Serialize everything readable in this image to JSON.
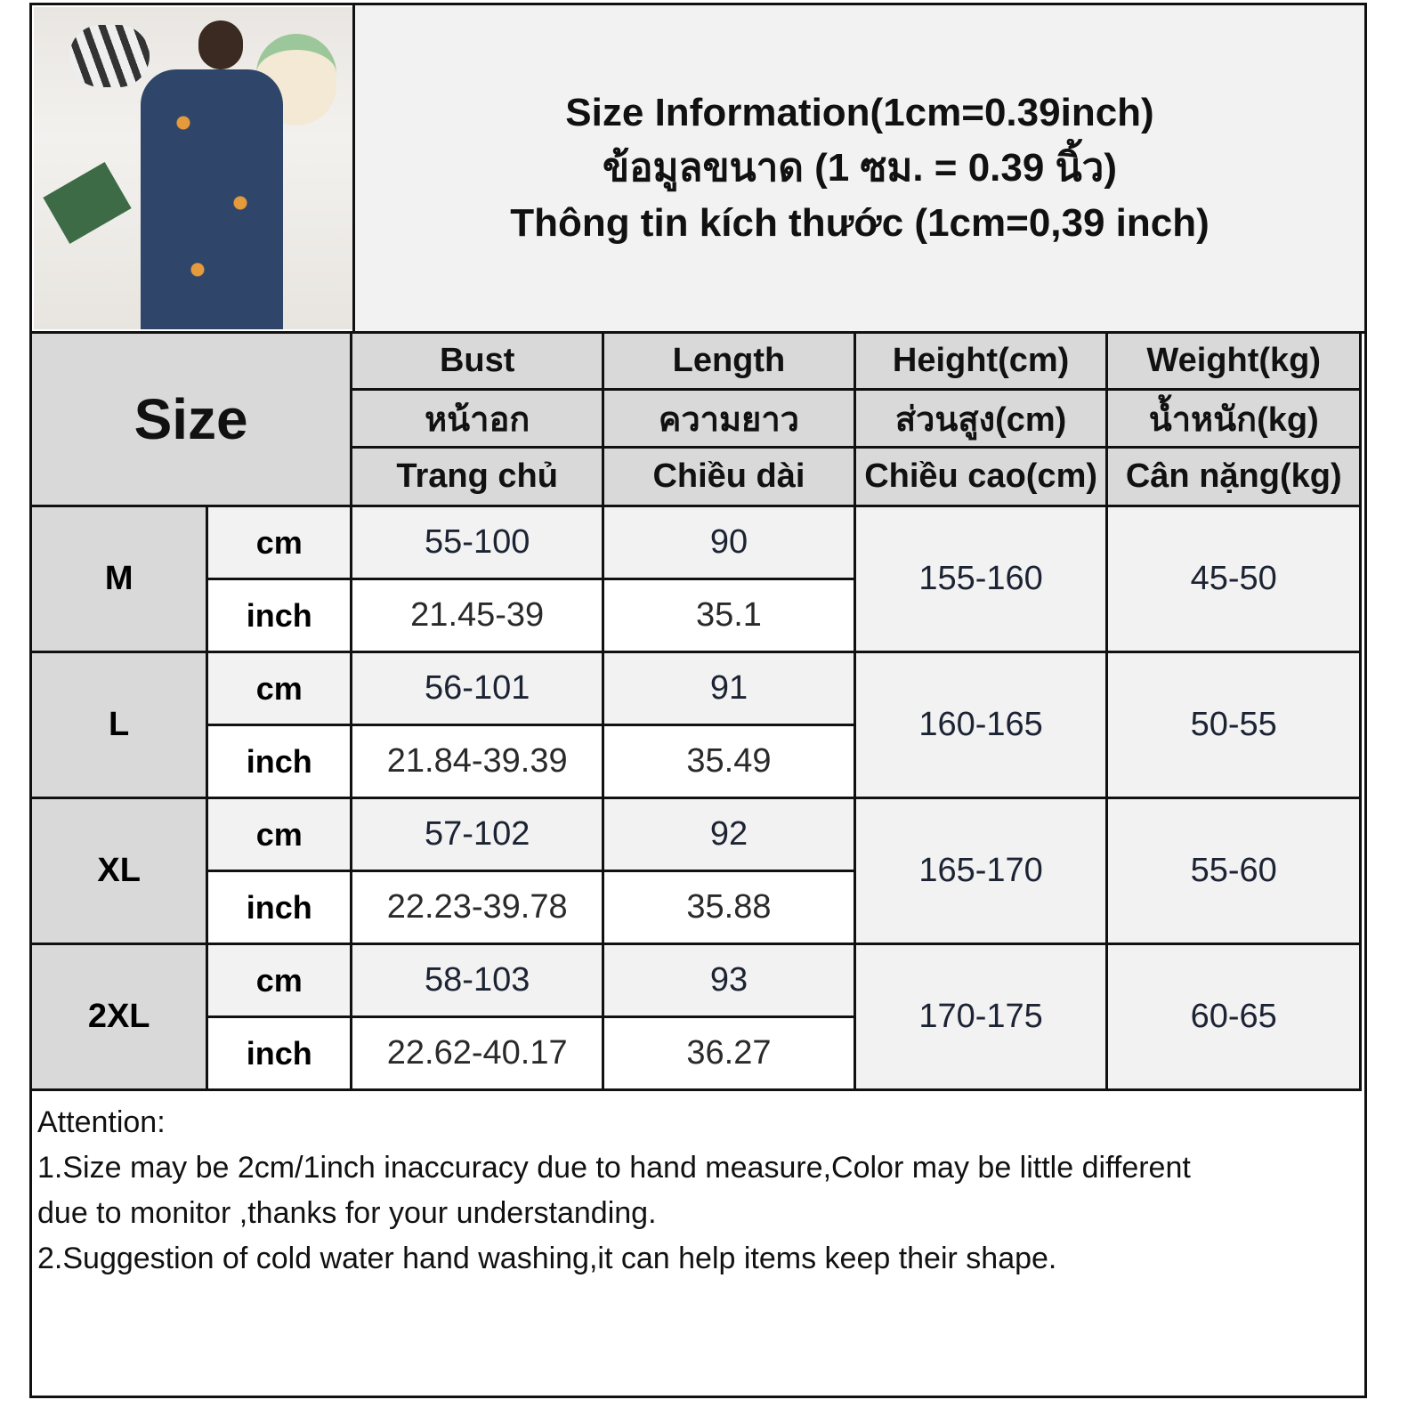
{
  "title_lines": [
    "Size Information(1cm=0.39inch)",
    "ข้อมูลขนาด (1 ซม. = 0.39 นิ้ว)",
    "Thông tin kích thước (1cm=0,39 inch)"
  ],
  "product_photo": "woman-in-navy-nightdress",
  "header": {
    "size_label": "Size",
    "columns": [
      {
        "en": "Bust",
        "th": "หน้าอก",
        "vi": "Trang chủ"
      },
      {
        "en": "Length",
        "th": "ความยาว",
        "vi": "Chiều dài"
      },
      {
        "en": "Height(cm)",
        "th": "ส่วนสูง(cm)",
        "vi": "Chiều cao(cm)"
      },
      {
        "en": "Weight(kg)",
        "th": "น้ำหนัก(kg)",
        "vi": "Cân nặng(kg)"
      }
    ]
  },
  "units": [
    "cm",
    "inch"
  ],
  "rows": [
    {
      "size": "M",
      "cm": {
        "bust": "55-100",
        "length": "90"
      },
      "inch": {
        "bust": "21.45-39",
        "length": "35.1"
      },
      "height": "155-160",
      "weight": "45-50"
    },
    {
      "size": "L",
      "cm": {
        "bust": "56-101",
        "length": "91"
      },
      "inch": {
        "bust": "21.84-39.39",
        "length": "35.49"
      },
      "height": "160-165",
      "weight": "50-55"
    },
    {
      "size": "XL",
      "cm": {
        "bust": "57-102",
        "length": "92"
      },
      "inch": {
        "bust": "22.23-39.78",
        "length": "35.88"
      },
      "height": "165-170",
      "weight": "55-60"
    },
    {
      "size": "2XL",
      "cm": {
        "bust": "58-103",
        "length": "93"
      },
      "inch": {
        "bust": "22.62-40.17",
        "length": "36.27"
      },
      "height": "170-175",
      "weight": "60-65"
    }
  ],
  "attention": {
    "heading": "Attention:",
    "lines": [
      "1.Size may be 2cm/1inch inaccuracy due to hand measure,Color may be little different",
      "due to monitor ,thanks for your understanding.",
      "2.Suggestion of cold water hand washing,it can help items keep their shape."
    ]
  },
  "colors": {
    "header_bg": "#d9d9d9",
    "cm_row_bg": "#f2f2f2",
    "border": "#111111"
  }
}
